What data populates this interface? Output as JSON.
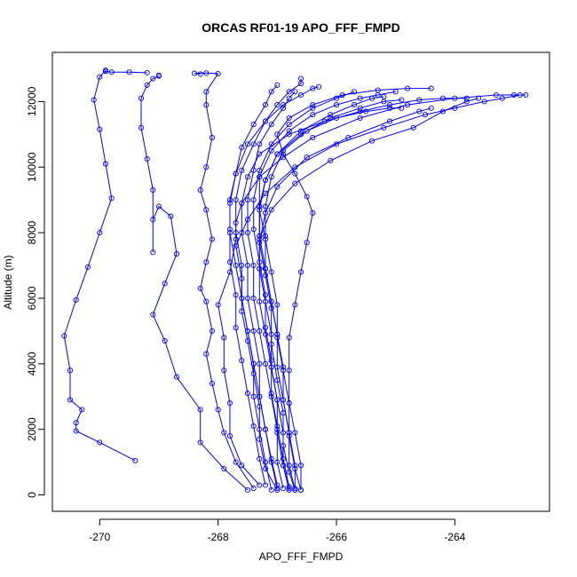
{
  "chart_data": {
    "type": "line",
    "title": "ORCAS RF01-19 APO_FFF_FMPD",
    "xlabel": "APO_FFF_FMPD",
    "ylabel": "Altitude (m)",
    "xlim": [
      -270.8,
      -262.4
    ],
    "ylim": [
      -500,
      13500
    ],
    "xticks": [
      -270,
      -268,
      -266,
      -264
    ],
    "yticks": [
      0,
      2000,
      4000,
      6000,
      8000,
      10000,
      12000
    ],
    "xtick_labels": [
      "-270",
      "-268",
      "-266",
      "-264"
    ],
    "ytick_labels": [
      "0",
      "2000",
      "4000",
      "6000",
      "8000",
      "10000",
      "12000"
    ],
    "grid": false,
    "marker": "open-circle",
    "series_color": "#0000ff",
    "series": [
      {
        "x": [
          -269.4,
          -270.0,
          -270.4,
          -270.4,
          -270.3,
          -270.5,
          -270.5,
          -270.6,
          -270.4,
          -270.2,
          -270.0,
          -269.8,
          -269.9,
          -270.0,
          -270.1,
          -270.0,
          -269.9,
          -269.9,
          -269.8,
          -269.5,
          -269.2
        ],
        "y": [
          1050,
          1600,
          1950,
          2200,
          2600,
          2900,
          3800,
          4850,
          5950,
          6950,
          8000,
          9050,
          10100,
          11150,
          12050,
          12750,
          12950,
          12920,
          12900,
          12900,
          12880
        ]
      },
      {
        "x": [
          -267.5,
          -267.9,
          -268.3,
          -268.3,
          -268.7,
          -268.9,
          -269.1,
          -268.9,
          -268.7,
          -268.8,
          -269.0,
          -269.1,
          -269.1,
          -269.1,
          -269.2,
          -269.3,
          -269.3,
          -269.2,
          -269.1,
          -269.0,
          -269.0
        ],
        "y": [
          150,
          800,
          1600,
          2600,
          3600,
          4700,
          5500,
          6450,
          7350,
          8500,
          8800,
          8400,
          7400,
          9300,
          10250,
          11200,
          12100,
          12500,
          12700,
          12780,
          12800
        ]
      },
      {
        "x": [
          -267.4,
          -267.7,
          -267.9,
          -268.0,
          -268.1,
          -268.2,
          -268.1,
          -268.2,
          -268.3,
          -268.2,
          -268.1,
          -268.2,
          -268.3,
          -268.2,
          -268.1,
          -268.2,
          -268.2,
          -268.0,
          -268.2,
          -268.4,
          -268.3
        ],
        "y": [
          200,
          1000,
          1900,
          2600,
          3400,
          4300,
          5000,
          5900,
          6300,
          7100,
          7800,
          8700,
          9300,
          10000,
          10900,
          11900,
          12300,
          12850,
          12870,
          12860,
          12840
        ]
      },
      {
        "x": [
          -267.3,
          -267.6,
          -267.8,
          -267.8,
          -267.9,
          -267.9,
          -268.0,
          -267.8,
          -267.7,
          -267.7,
          -267.6,
          -267.3,
          -266.9,
          -266.4,
          -265.6,
          -264.8,
          -264.0,
          -263.3,
          -263.0,
          -262.8
        ],
        "y": [
          300,
          900,
          1800,
          2800,
          3800,
          4800,
          5800,
          6800,
          7800,
          8300,
          8900,
          9700,
          10300,
          10900,
          11500,
          11900,
          12100,
          12200,
          12200,
          12200
        ]
      },
      {
        "x": [
          -267.0,
          -267.2,
          -267.3,
          -267.3,
          -267.4,
          -267.5,
          -267.6,
          -267.6,
          -267.7,
          -267.5,
          -267.2,
          -266.7,
          -266.0,
          -265.2,
          -264.5,
          -264.0,
          -263.5,
          -263.2,
          -262.9
        ],
        "y": [
          150,
          800,
          1700,
          2700,
          3700,
          4700,
          5600,
          6600,
          7600,
          8400,
          9200,
          10000,
          10700,
          11200,
          11600,
          11800,
          12000,
          12100,
          12200
        ]
      },
      {
        "x": [
          -266.8,
          -266.9,
          -267.0,
          -267.0,
          -267.1,
          -267.2,
          -267.3,
          -267.3,
          -267.3,
          -267.1,
          -266.7,
          -266.1,
          -265.4,
          -264.7,
          -264.2,
          -263.8,
          -263.6
        ],
        "y": [
          200,
          900,
          1900,
          2900,
          3900,
          4900,
          5900,
          6900,
          7800,
          8700,
          9500,
          10200,
          10800,
          11200,
          11700,
          12000,
          12100
        ]
      },
      {
        "x": [
          -266.7,
          -266.8,
          -266.9,
          -266.9,
          -267.0,
          -267.1,
          -267.1,
          -267.2,
          -267.3,
          -267.2,
          -267.0,
          -266.5,
          -265.8,
          -265.1,
          -264.6,
          -264.4
        ],
        "y": [
          150,
          700,
          1500,
          2500,
          3500,
          4600,
          5700,
          6700,
          7700,
          8600,
          9400,
          10300,
          10900,
          11400,
          11700,
          11800
        ]
      },
      {
        "x": [
          -266.6,
          -266.7,
          -266.8,
          -266.8,
          -266.9,
          -267.0,
          -267.0,
          -267.1,
          -267.2,
          -267.3,
          -267.2,
          -267.0,
          -266.6,
          -266.1,
          -265.6,
          -265.2,
          -264.9
        ],
        "y": [
          150,
          800,
          1800,
          2800,
          3800,
          4800,
          5800,
          6800,
          7800,
          8700,
          9600,
          10400,
          11000,
          11500,
          11800,
          12000,
          12050
        ]
      },
      {
        "x": [
          -266.7,
          -266.7,
          -266.8,
          -266.9,
          -266.9,
          -267.0,
          -267.1,
          -267.2,
          -267.3,
          -267.3,
          -267.3,
          -267.1,
          -266.8,
          -266.4,
          -266.0,
          -265.6,
          -265.3,
          -265.0
        ],
        "y": [
          200,
          900,
          1900,
          2900,
          3900,
          4900,
          5900,
          6900,
          7900,
          8800,
          9700,
          10500,
          11100,
          11600,
          11900,
          12100,
          12200,
          12300
        ]
      },
      {
        "x": [
          -266.6,
          -266.6,
          -266.7,
          -266.8,
          -266.8,
          -266.8,
          -266.7,
          -266.6,
          -266.5,
          -266.4,
          -266.5,
          -266.7,
          -266.9,
          -267.0,
          -266.8,
          -266.4,
          -265.9,
          -265.3,
          -264.8,
          -264.4
        ],
        "y": [
          150,
          900,
          1900,
          2800,
          3800,
          4800,
          5800,
          6800,
          7700,
          8600,
          9100,
          9800,
          10400,
          11000,
          11500,
          11900,
          12200,
          12350,
          12400,
          12400
        ]
      },
      {
        "x": [
          -266.8,
          -266.9,
          -267.0,
          -267.1,
          -267.1,
          -267.2,
          -267.2,
          -267.3,
          -267.4,
          -267.4,
          -267.3,
          -267.1,
          -266.8,
          -266.4,
          -266.0,
          -265.7
        ],
        "y": [
          250,
          1100,
          2100,
          3100,
          4100,
          5100,
          6100,
          7100,
          8100,
          9000,
          9900,
          10700,
          11300,
          11800,
          12100,
          12300
        ]
      },
      {
        "x": [
          -267.0,
          -267.1,
          -267.2,
          -267.3,
          -267.4,
          -267.5,
          -267.6,
          -267.7,
          -267.8,
          -267.8,
          -267.7,
          -267.5,
          -267.2,
          -266.9,
          -266.6,
          -266.4,
          -266.3
        ],
        "y": [
          300,
          1100,
          2000,
          3000,
          4000,
          5000,
          6000,
          7000,
          8000,
          8900,
          9800,
          10700,
          11400,
          11900,
          12200,
          12400,
          12450
        ]
      },
      {
        "x": [
          -267.1,
          -267.2,
          -267.3,
          -267.4,
          -267.4,
          -267.5,
          -267.6,
          -267.6,
          -267.7,
          -267.7,
          -267.6,
          -267.4,
          -267.2,
          -267.0,
          -266.8,
          -266.6,
          -266.6
        ],
        "y": [
          150,
          1000,
          2000,
          3000,
          4000,
          5000,
          6000,
          7000,
          8000,
          9000,
          9900,
          10700,
          11400,
          11900,
          12300,
          12550,
          12700
        ]
      },
      {
        "x": [
          -266.9,
          -267.0,
          -267.0,
          -267.1,
          -267.2,
          -267.3,
          -267.4,
          -267.4,
          -267.5,
          -267.5,
          -267.4,
          -267.3,
          -267.1,
          -266.9,
          -266.8,
          -266.7
        ],
        "y": [
          200,
          1000,
          2000,
          3000,
          4000,
          5000,
          6000,
          7000,
          8000,
          9000,
          9900,
          10700,
          11300,
          11800,
          12100,
          12300
        ]
      },
      {
        "x": [
          -267.2,
          -267.3,
          -267.4,
          -267.5,
          -267.6,
          -267.7,
          -267.7,
          -267.8,
          -267.8,
          -267.8,
          -267.7,
          -267.6,
          -267.4,
          -267.2,
          -267.1,
          -267.0
        ],
        "y": [
          300,
          1100,
          2100,
          3100,
          4100,
          5100,
          6100,
          7100,
          8100,
          9000,
          9800,
          10600,
          11300,
          11900,
          12300,
          12500
        ]
      },
      {
        "x": [
          -266.7,
          -266.8,
          -266.8,
          -266.9,
          -267.0,
          -267.0,
          -267.1,
          -267.2,
          -267.2,
          -267.2,
          -267.1,
          -266.9,
          -266.5,
          -266.0,
          -265.5,
          -265.1,
          -264.9
        ],
        "y": [
          150,
          900,
          1900,
          2900,
          3900,
          4900,
          5900,
          6900,
          7900,
          8800,
          9700,
          10500,
          11100,
          11500,
          11700,
          11800,
          11800
        ]
      },
      {
        "x": [
          -267.0,
          -267.1,
          -267.2,
          -267.3,
          -267.3,
          -267.4,
          -267.5,
          -267.5,
          -267.6,
          -267.6,
          -267.5,
          -267.3,
          -266.8,
          -266.2,
          -265.6,
          -265.1,
          -264.6,
          -264.2,
          -263.8
        ],
        "y": [
          200,
          1000,
          2000,
          3000,
          4000,
          5000,
          6000,
          7000,
          8000,
          8900,
          9700,
          10400,
          11000,
          11400,
          11700,
          11900,
          12050,
          12100,
          12100
        ]
      },
      {
        "x": [
          -266.8,
          -266.9,
          -266.9,
          -267.0,
          -267.1,
          -267.1,
          -267.2,
          -267.3,
          -267.3,
          -267.3,
          -267.2,
          -267.0,
          -266.6,
          -266.1,
          -265.7,
          -265.4,
          -265.2
        ],
        "y": [
          150,
          900,
          1900,
          2900,
          3900,
          4900,
          5900,
          6900,
          7900,
          8800,
          9600,
          10400,
          11100,
          11600,
          11900,
          12100,
          12150
        ]
      }
    ]
  }
}
